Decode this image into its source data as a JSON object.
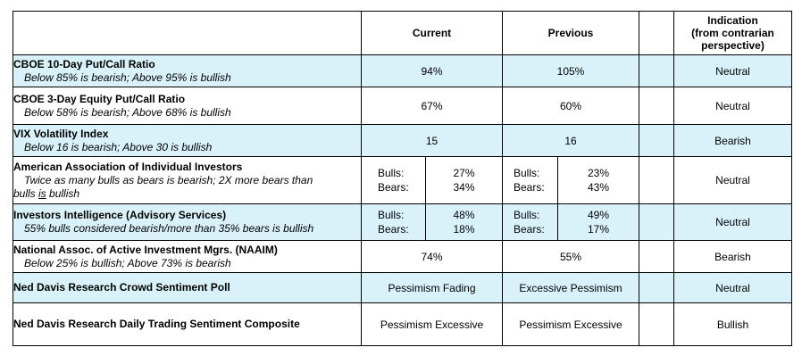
{
  "headers": {
    "label": "",
    "current": "Current",
    "previous": "Previous",
    "blank": "",
    "indication_line1": "Indication",
    "indication_line2": "(from contrarian",
    "indication_line3": "perspective)"
  },
  "rows": [
    {
      "name": "CBOE 10-Day Put/Call Ratio",
      "note": "Below 85% is bearish; Above 95% is bullish",
      "current": "94%",
      "previous": "105%",
      "indication": "Neutral"
    },
    {
      "name": "CBOE 3-Day Equity Put/Call Ratio",
      "note": "Below 58% is bearish; Above 68% is bullish",
      "current": "67%",
      "previous": "60%",
      "indication": "Neutral"
    },
    {
      "name": "VIX Volatility Index",
      "note": "Below 16 is bearish; Above 30 is bullish",
      "current": "15",
      "previous": "16",
      "indication": "Bearish"
    },
    {
      "name": "American Association of Individual Investors",
      "note_part1": "Twice as many bulls as bears is bearish; 2X more bears than",
      "note_part2_a": "bulls ",
      "note_part2_u": "is",
      "note_part2_b": " bullish",
      "bulls_label": "Bulls:",
      "bears_label": "Bears:",
      "current_bulls": "27%",
      "current_bears": "34%",
      "previous_bulls": "23%",
      "previous_bears": "43%",
      "indication": "Neutral"
    },
    {
      "name": "Investors Intelligence (Advisory Services)",
      "note": "55% bulls considered bearish/more than 35% bears is bullish",
      "bulls_label": "Bulls:",
      "bears_label": "Bears:",
      "current_bulls": "48%",
      "current_bears": "18%",
      "previous_bulls": "49%",
      "previous_bears": "17%",
      "indication": "Neutral"
    },
    {
      "name": "National Assoc. of Active Investment Mgrs. (NAAIM)",
      "note": "Below 25% is bullish; Above 73% is bearish",
      "current": "74%",
      "previous": "55%",
      "indication": "Bearish"
    },
    {
      "name": "Ned Davis Research Crowd Sentiment Poll",
      "current": "Pessimism Fading",
      "previous": "Excessive Pessimism",
      "indication": "Neutral"
    },
    {
      "name": "Ned Davis Research Daily Trading Sentiment Composite",
      "current": "Pessimism Excessive",
      "previous": "Pessimism Excessive",
      "indication": "Bullish"
    }
  ],
  "colors": {
    "shade": "#d9f2fa",
    "border": "#000000"
  }
}
